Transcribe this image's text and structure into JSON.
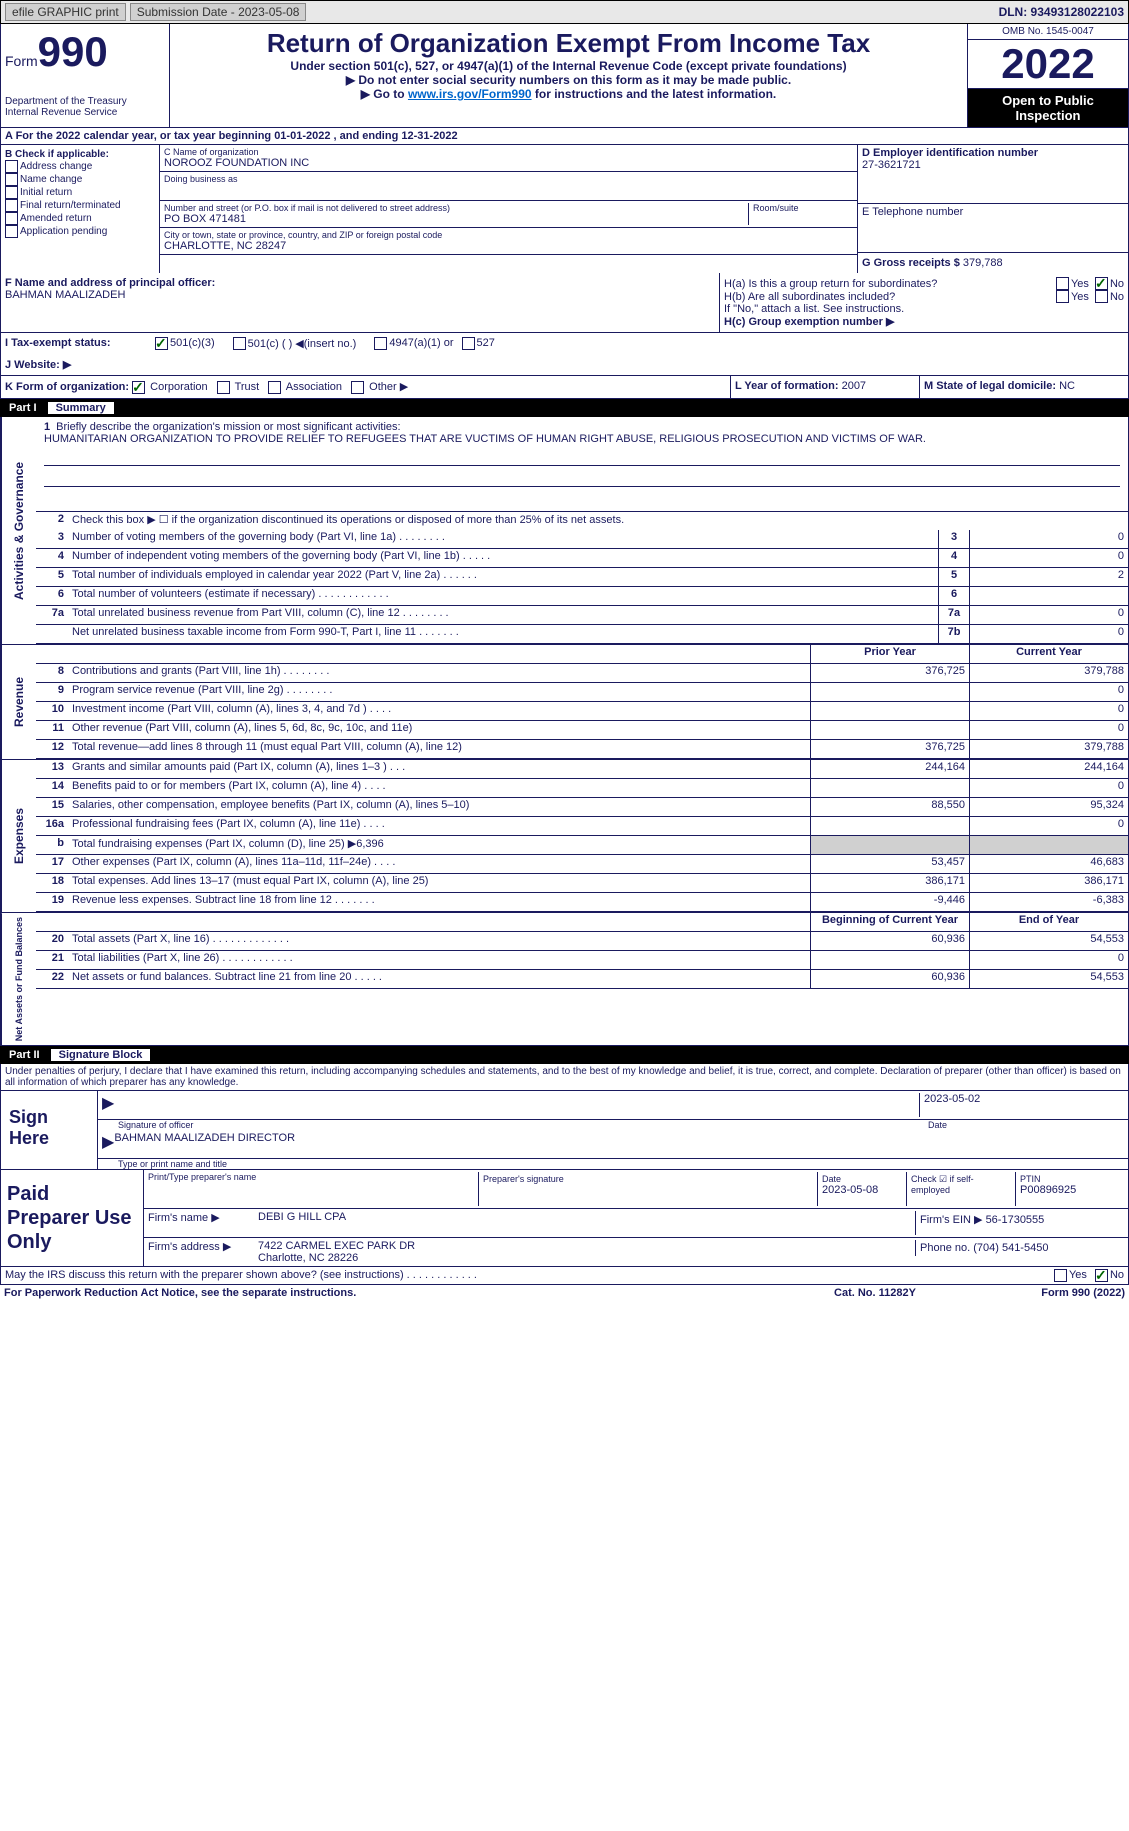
{
  "topbar": {
    "efile": "efile GRAPHIC print",
    "submission_label": "Submission Date - 2023-05-08",
    "dln": "DLN: 93493128022103"
  },
  "header": {
    "form_label": "Form",
    "form_num": "990",
    "dept": "Department of the Treasury",
    "irs": "Internal Revenue Service",
    "title": "Return of Organization Exempt From Income Tax",
    "subtitle": "Under section 501(c), 527, or 4947(a)(1) of the Internal Revenue Code (except private foundations)",
    "instr1": "▶ Do not enter social security numbers on this form as it may be made public.",
    "instr2_pre": "▶ Go to ",
    "instr2_link": "www.irs.gov/Form990",
    "instr2_post": " for instructions and the latest information.",
    "omb": "OMB No. 1545-0047",
    "year": "2022",
    "open": "Open to Public Inspection"
  },
  "sectionA": "A For the 2022 calendar year, or tax year beginning 01-01-2022    , and ending 12-31-2022",
  "sectionB": {
    "label": "B Check if applicable:",
    "items": [
      "Address change",
      "Name change",
      "Initial return",
      "Final return/terminated",
      "Amended return",
      "Application pending"
    ]
  },
  "sectionC": {
    "name_label": "C Name of organization",
    "name": "NOROOZ FOUNDATION INC",
    "dba_label": "Doing business as",
    "street_label": "Number and street (or P.O. box if mail is not delivered to street address)",
    "room_label": "Room/suite",
    "street": "PO BOX 471481",
    "city_label": "City or town, state or province, country, and ZIP or foreign postal code",
    "city": "CHARLOTTE, NC  28247"
  },
  "sectionD": {
    "label": "D Employer identification number",
    "value": "27-3621721"
  },
  "sectionE": {
    "label": "E Telephone number"
  },
  "sectionG": {
    "label": "G Gross receipts $",
    "value": "379,788"
  },
  "sectionF": {
    "label": "F Name and address of principal officer:",
    "name": "BAHMAN MAALIZADEH"
  },
  "sectionH": {
    "ha": "H(a)  Is this a group return for subordinates?",
    "hb": "H(b)  Are all subordinates included?",
    "hb_note": "If \"No,\" attach a list. See instructions.",
    "hc": "H(c)  Group exemption number ▶",
    "yes": "Yes",
    "no": "No"
  },
  "sectionI": {
    "label": "I   Tax-exempt status:",
    "o501c3": "501(c)(3)",
    "o501c": "501(c) (  ) ◀(insert no.)",
    "o4947": "4947(a)(1) or",
    "o527": "527"
  },
  "sectionJ": "J   Website: ▶",
  "sectionK": {
    "label": "K Form of organization:",
    "corp": "Corporation",
    "trust": "Trust",
    "assoc": "Association",
    "other": "Other ▶"
  },
  "sectionL": {
    "label": "L Year of formation:",
    "value": "2007"
  },
  "sectionM": {
    "label": "M State of legal domicile:",
    "value": "NC"
  },
  "parts": {
    "p1": "Part I",
    "p1_title": "Summary",
    "p2": "Part II",
    "p2_title": "Signature Block"
  },
  "tabs": {
    "activities": "Activities & Governance",
    "revenue": "Revenue",
    "expenses": "Expenses",
    "netassets": "Net Assets or Fund Balances"
  },
  "summary": {
    "line1": "Briefly describe the organization's mission or most significant activities:",
    "mission": "HUMANITARIAN ORGANIZATION TO PROVIDE RELIEF TO REFUGEES THAT ARE VUCTIMS OF HUMAN RIGHT ABUSE, RELIGIOUS PROSECUTION AND VICTIMS OF WAR.",
    "line2": "Check this box ▶ ☐ if the organization discontinued its operations or disposed of more than 25% of its net assets.",
    "lines": [
      {
        "n": "3",
        "d": "Number of voting members of the governing body (Part VI, line 1a)   .    .    .    .    .    .    .    .",
        "box": "3",
        "v": "0"
      },
      {
        "n": "4",
        "d": "Number of independent voting members of the governing body (Part VI, line 1b)   .    .    .    .    .",
        "box": "4",
        "v": "0"
      },
      {
        "n": "5",
        "d": "Total number of individuals employed in calendar year 2022 (Part V, line 2a)   .    .    .    .    .    .",
        "box": "5",
        "v": "2"
      },
      {
        "n": "6",
        "d": "Total number of volunteers (estimate if necessary)    .    .    .    .    .    .    .    .    .    .    .    .",
        "box": "6",
        "v": ""
      },
      {
        "n": "7a",
        "d": "Total unrelated business revenue from Part VIII, column (C), line 12   .    .    .    .    .    .    .    .",
        "box": "7a",
        "v": "0"
      },
      {
        "n": "",
        "d": "Net unrelated business taxable income from Form 990-T, Part I, line 11   .    .    .    .    .    .    .",
        "box": "7b",
        "v": "0"
      }
    ],
    "col_prior": "Prior Year",
    "col_current": "Current Year",
    "col_begin": "Beginning of Current Year",
    "col_end": "End of Year",
    "rev": [
      {
        "n": "8",
        "d": "Contributions and grants (Part VIII, line 1h)   .    .    .    .    .    .    .    .",
        "p": "376,725",
        "c": "379,788"
      },
      {
        "n": "9",
        "d": "Program service revenue (Part VIII, line 2g)     .    .    .    .    .    .    .    .",
        "p": "",
        "c": "0"
      },
      {
        "n": "10",
        "d": "Investment income (Part VIII, column (A), lines 3, 4, and 7d )    .    .    .    .",
        "p": "",
        "c": "0"
      },
      {
        "n": "11",
        "d": "Other revenue (Part VIII, column (A), lines 5, 6d, 8c, 9c, 10c, and 11e)",
        "p": "",
        "c": "0"
      },
      {
        "n": "12",
        "d": "Total revenue—add lines 8 through 11 (must equal Part VIII, column (A), line 12)",
        "p": "376,725",
        "c": "379,788"
      }
    ],
    "exp": [
      {
        "n": "13",
        "d": "Grants and similar amounts paid (Part IX, column (A), lines 1–3 )   .    .    .",
        "p": "244,164",
        "c": "244,164"
      },
      {
        "n": "14",
        "d": "Benefits paid to or for members (Part IX, column (A), line 4)   .    .    .    .",
        "p": "",
        "c": "0"
      },
      {
        "n": "15",
        "d": "Salaries, other compensation, employee benefits (Part IX, column (A), lines 5–10)",
        "p": "88,550",
        "c": "95,324"
      },
      {
        "n": "16a",
        "d": "Professional fundraising fees (Part IX, column (A), line 11e)    .    .    .    .",
        "p": "",
        "c": "0"
      },
      {
        "n": "b",
        "d": "Total fundraising expenses (Part IX, column (D), line 25) ▶6,396",
        "p": "grey",
        "c": "grey"
      },
      {
        "n": "17",
        "d": "Other expenses (Part IX, column (A), lines 11a–11d, 11f–24e)   .    .    .    .",
        "p": "53,457",
        "c": "46,683"
      },
      {
        "n": "18",
        "d": "Total expenses. Add lines 13–17 (must equal Part IX, column (A), line 25)",
        "p": "386,171",
        "c": "386,171"
      },
      {
        "n": "19",
        "d": "Revenue less expenses. Subtract line 18 from line 12 .    .    .    .    .    .    .",
        "p": "-9,446",
        "c": "-6,383"
      }
    ],
    "net": [
      {
        "n": "20",
        "d": "Total assets (Part X, line 16) .    .    .    .    .    .    .    .    .    .    .    .    .",
        "p": "60,936",
        "c": "54,553"
      },
      {
        "n": "21",
        "d": "Total liabilities (Part X, line 26) .    .    .    .    .    .    .    .    .    .    .    .",
        "p": "",
        "c": "0"
      },
      {
        "n": "22",
        "d": "Net assets or fund balances. Subtract line 21 from line 20    .    .    .    .    .",
        "p": "60,936",
        "c": "54,553"
      }
    ]
  },
  "signature": {
    "declaration": "Under penalties of perjury, I declare that I have examined this return, including accompanying schedules and statements, and to the best of my knowledge and belief, it is true, correct, and complete. Declaration of preparer (other than officer) is based on all information of which preparer has any knowledge.",
    "sign_here": "Sign Here",
    "sig_officer": "Signature of officer",
    "date": "Date",
    "sig_date": "2023-05-02",
    "officer_name": "BAHMAN MAALIZADEH  DIRECTOR",
    "type_name": "Type or print name and title"
  },
  "preparer": {
    "label": "Paid Preparer Use Only",
    "print_name_label": "Print/Type preparer's name",
    "sig_label": "Preparer's signature",
    "date_label": "Date",
    "date": "2023-05-08",
    "check_label": "Check ☑ if self-employed",
    "ptin_label": "PTIN",
    "ptin": "P00896925",
    "firm_name_label": "Firm's name    ▶",
    "firm_name": "DEBI G HILL CPA",
    "firm_ein_label": "Firm's EIN ▶",
    "firm_ein": "56-1730555",
    "firm_addr_label": "Firm's address ▶",
    "firm_addr": "7422 CARMEL EXEC PARK DR",
    "firm_city": "Charlotte, NC  28226",
    "phone_label": "Phone no.",
    "phone": "(704) 541-5450"
  },
  "footer": {
    "discuss": "May the IRS discuss this return with the preparer shown above? (see instructions)    .    .    .    .    .    .    .    .    .    .    .    .",
    "yes": "Yes",
    "no": "No",
    "paperwork": "For Paperwork Reduction Act Notice, see the separate instructions.",
    "catno": "Cat. No. 11282Y",
    "formno": "Form 990 (2022)"
  }
}
